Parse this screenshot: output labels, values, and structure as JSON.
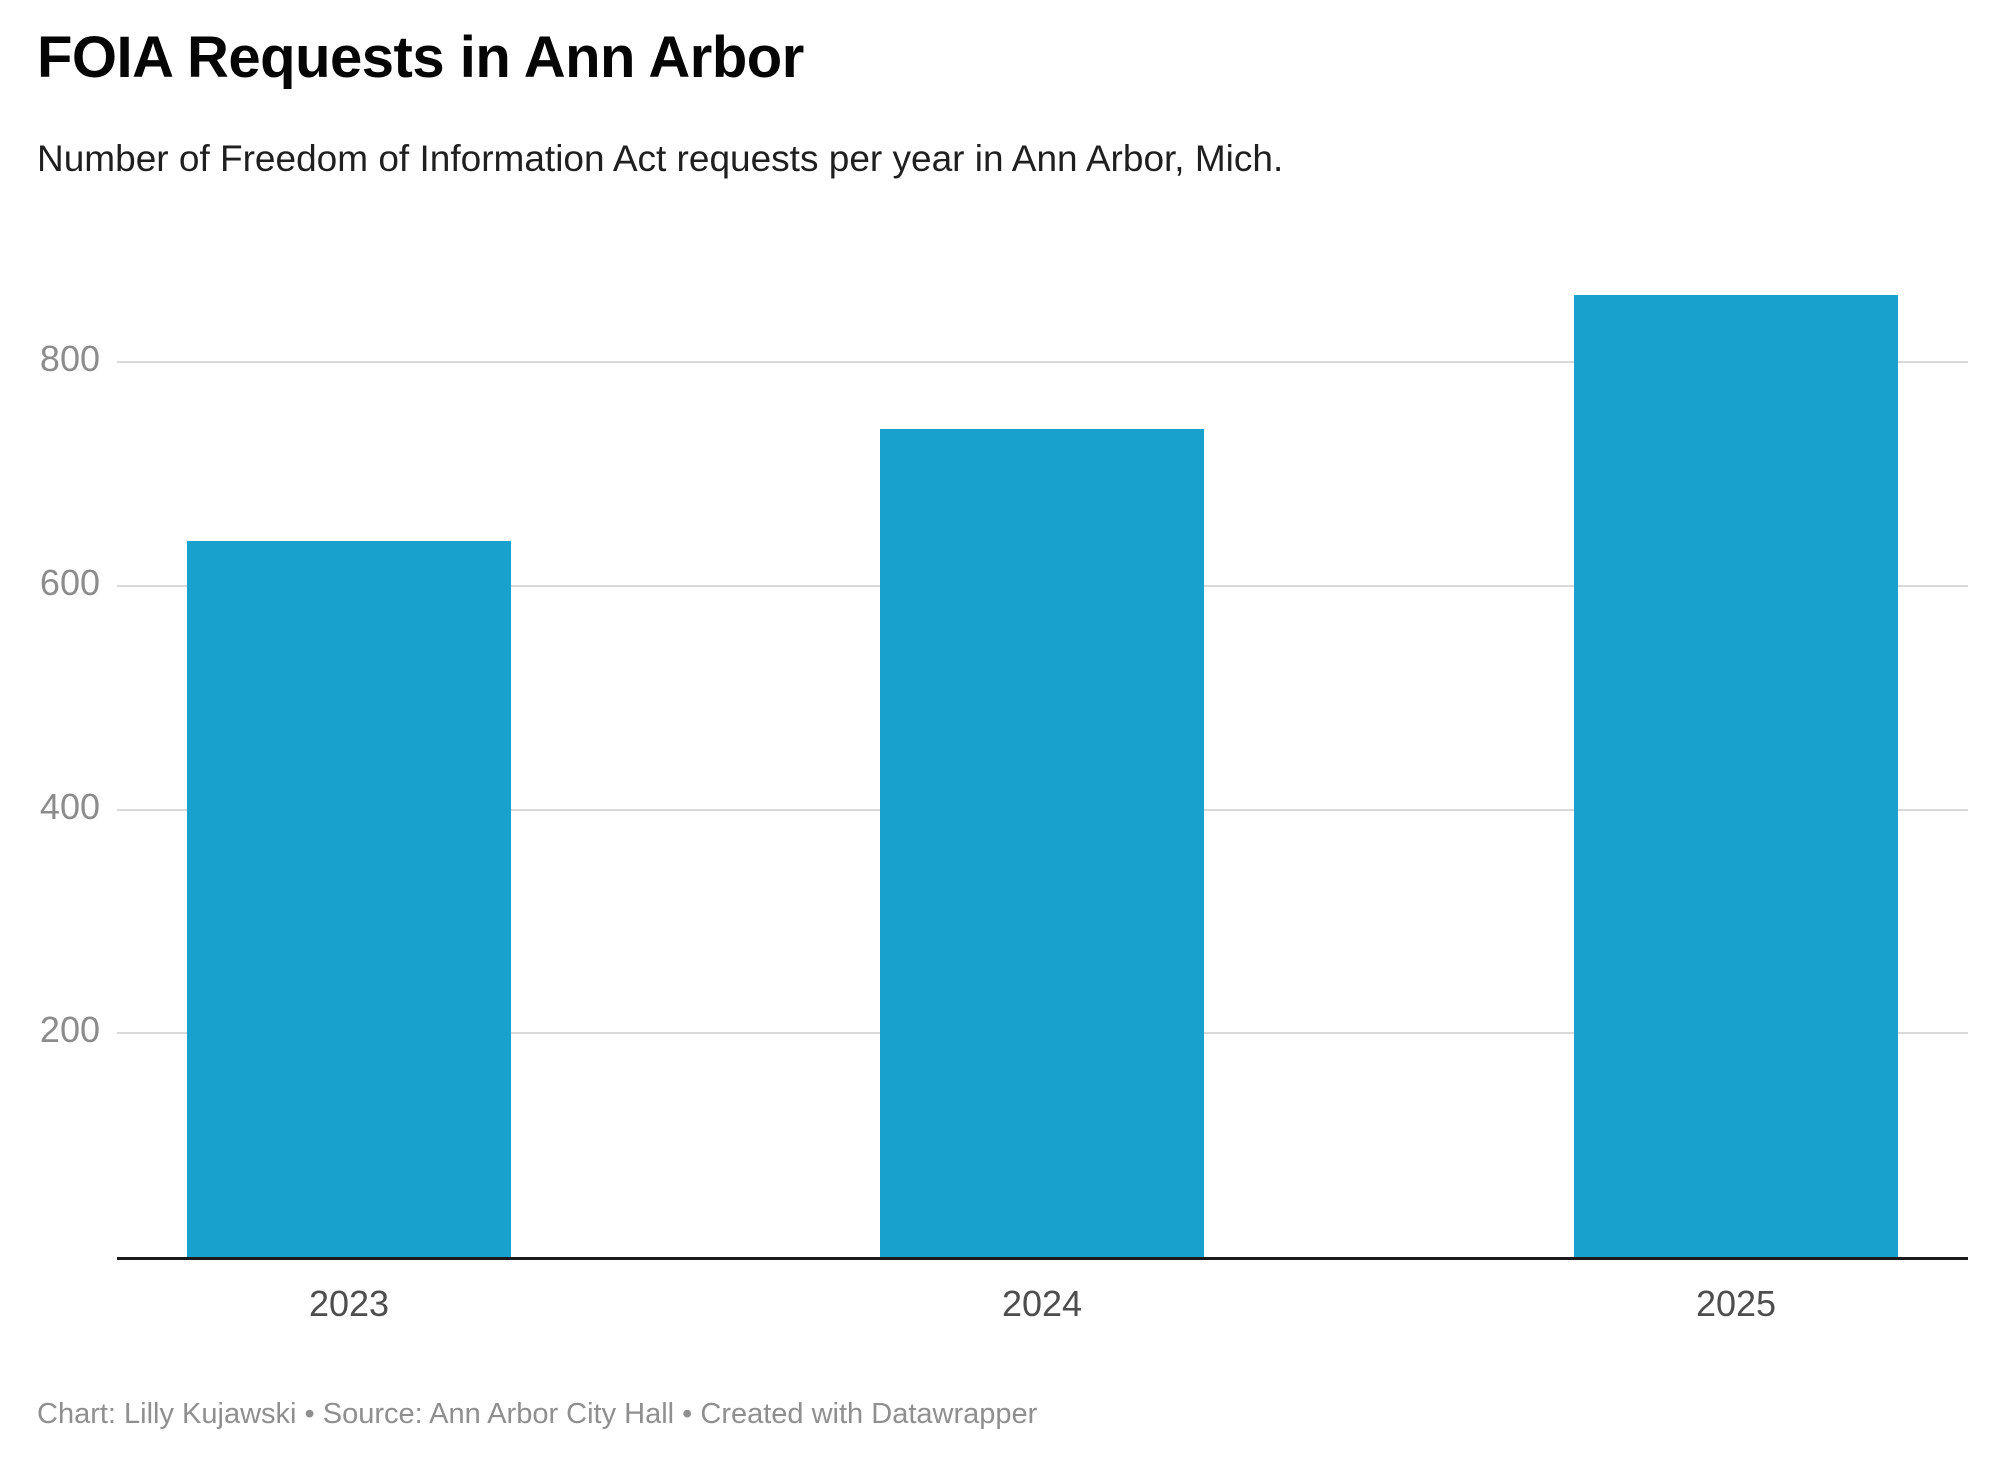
{
  "chart_data": {
    "type": "bar",
    "title": "FOIA Requests in Ann Arbor",
    "subtitle": "Number of Freedom of Information Act requests per year in Ann Arbor, Mich.",
    "categories": [
      "2023",
      "2024",
      "2025"
    ],
    "values": [
      640,
      740,
      860
    ],
    "xlabel": "",
    "ylabel": "",
    "ylim": [
      0,
      880
    ],
    "yticks": [
      200,
      400,
      600,
      800
    ],
    "grid": "horizontal",
    "legend": "none",
    "bar_color": "#18a1cd",
    "gridline_color": "#d9d9d9",
    "baseline_color": "#1a1a1a",
    "ytick_label_color": "#8c8c8c",
    "xtick_label_color": "#4d4d4d"
  },
  "footer": {
    "text": "Chart: Lilly Kujawski • Source: Ann Arbor City Hall • Created with Datawrapper"
  }
}
